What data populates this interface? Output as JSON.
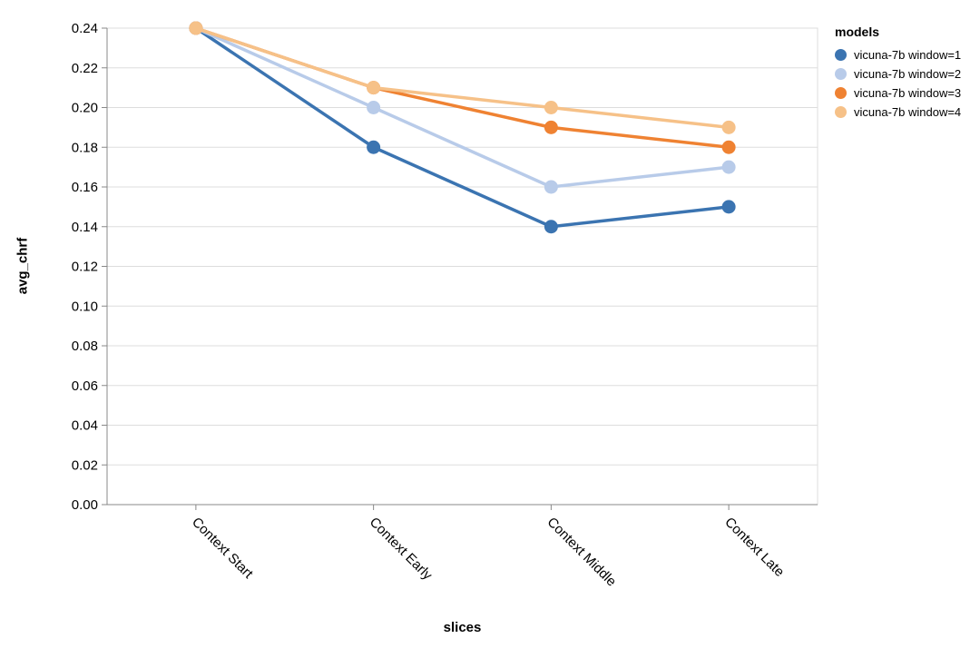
{
  "chart_data": {
    "type": "line",
    "title": "",
    "xlabel": "slices",
    "ylabel": "avg_chrf",
    "legend_title": "models",
    "legend_position": "right",
    "grid": "horizontal",
    "categories": [
      "Context Start",
      "Context Early",
      "Context Middle",
      "Context Late"
    ],
    "series": [
      {
        "name": "vicuna-7b window=1",
        "color": "#3b74b1",
        "values": [
          0.24,
          0.18,
          0.14,
          0.15
        ]
      },
      {
        "name": "vicuna-7b window=2",
        "color": "#b8cbe9",
        "values": [
          0.24,
          0.2,
          0.16,
          0.17
        ]
      },
      {
        "name": "vicuna-7b window=3",
        "color": "#ef8232",
        "values": [
          0.24,
          0.21,
          0.19,
          0.18
        ]
      },
      {
        "name": "vicuna-7b window=4",
        "color": "#f6c188",
        "values": [
          0.24,
          0.21,
          0.2,
          0.19
        ]
      }
    ],
    "ylim": [
      0,
      0.24
    ],
    "y_ticks": [
      0.0,
      0.02,
      0.04,
      0.06,
      0.08,
      0.1,
      0.12,
      0.14,
      0.16,
      0.18,
      0.2,
      0.22,
      0.24
    ],
    "y_tick_format_decimals": 2,
    "colors": {
      "grid": "#dddddd",
      "axis_domain": "#888888",
      "label_text": "#000000"
    }
  }
}
